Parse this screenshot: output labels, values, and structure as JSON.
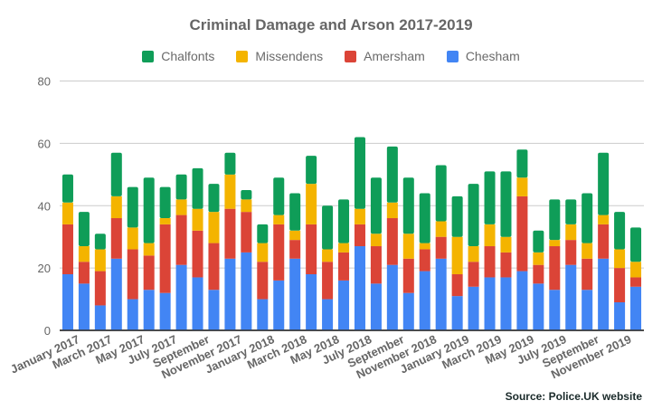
{
  "chart_data": {
    "type": "bar",
    "stacked": true,
    "title": "Criminal Damage and Arson  2017-2019",
    "xlabel": "",
    "ylabel": "",
    "ylim": [
      0,
      80
    ],
    "yticks": [
      0,
      20,
      40,
      60,
      80
    ],
    "grid": true,
    "legend_position": "top",
    "categories": [
      "January 2017",
      "February 2017",
      "March 2017",
      "April 2017",
      "May 2017",
      "June 2017",
      "July 2017",
      "August 2017",
      "September",
      "October 2017",
      "November 2017",
      "December 2017",
      "January 2018",
      "February 2018",
      "March 2018",
      "April 2018",
      "May 2018",
      "June 2018",
      "July 2018",
      "August 2018",
      "September",
      "October 2018",
      "November 2018",
      "December 2018",
      "January 2019",
      "February 2019",
      "March 2019",
      "April 2019",
      "May 2019",
      "June 2019",
      "July 2019",
      "August 2019",
      "September",
      "October 2019",
      "November 2019",
      "December 2019"
    ],
    "visible_x_tick_labels": [
      "January 2017",
      "March 2017",
      "May 2017",
      "July 2017",
      "September",
      "November 2017",
      "January 2018",
      "March 2018",
      "May 2018",
      "July 2018",
      "September",
      "November 2018",
      "January 2019",
      "March 2019",
      "May 2019",
      "July 2019",
      "September",
      "November 2019"
    ],
    "series": [
      {
        "name": "Chesham",
        "color": "#4285f4",
        "values": [
          18,
          15,
          8,
          23,
          10,
          13,
          12,
          21,
          17,
          13,
          23,
          25,
          10,
          16,
          23,
          18,
          10,
          16,
          27,
          15,
          21,
          12,
          19,
          23,
          11,
          14,
          17,
          17,
          19,
          15,
          13,
          21,
          13,
          23,
          9,
          14
        ]
      },
      {
        "name": "Amersham",
        "color": "#db4437",
        "values": [
          16,
          7,
          11,
          13,
          16,
          11,
          22,
          16,
          15,
          15,
          16,
          13,
          12,
          18,
          6,
          16,
          12,
          9,
          7,
          12,
          15,
          11,
          7,
          7,
          7,
          8,
          10,
          8,
          24,
          6,
          14,
          8,
          10,
          11,
          11,
          3
        ]
      },
      {
        "name": "Missendens",
        "color": "#f4b400",
        "values": [
          7,
          5,
          7,
          7,
          7,
          4,
          2,
          5,
          7,
          10,
          11,
          4,
          6,
          3,
          3,
          13,
          4,
          3,
          5,
          4,
          5,
          8,
          2,
          5,
          12,
          5,
          7,
          5,
          6,
          4,
          2,
          5,
          5,
          3,
          6,
          5
        ]
      },
      {
        "name": "Chalfonts",
        "color": "#0f9d58",
        "values": [
          9,
          11,
          5,
          14,
          13,
          21,
          10,
          8,
          13,
          9,
          7,
          3,
          6,
          12,
          12,
          9,
          14,
          14,
          23,
          18,
          18,
          18,
          16,
          18,
          13,
          20,
          17,
          21,
          9,
          7,
          13,
          8,
          16,
          20,
          12,
          11
        ]
      }
    ],
    "legend_order": [
      "Chalfonts",
      "Missendens",
      "Amersham",
      "Chesham"
    ]
  },
  "source_note": "Source: Police.UK website"
}
